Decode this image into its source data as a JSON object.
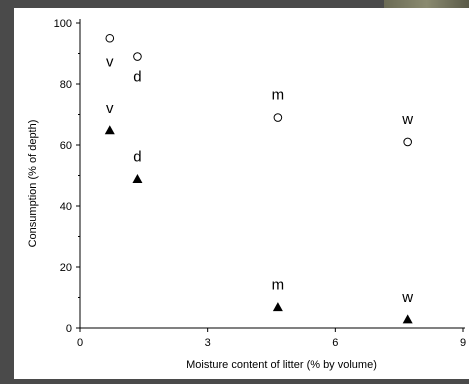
{
  "chart_data": {
    "type": "scatter",
    "title": "",
    "xlabel": "Moisture content of litter (% by volume)",
    "ylabel": "Consumption (% of depth)",
    "xlim": [
      0,
      9
    ],
    "ylim": [
      0,
      100
    ],
    "xticks": [
      0,
      3,
      6,
      9
    ],
    "yticks": [
      0,
      20,
      40,
      60,
      80,
      100
    ],
    "grid": false,
    "legend": "none",
    "series": [
      {
        "marker": "open-circle",
        "color": "#000000",
        "points": [
          {
            "x": 0.7,
            "y": 95,
            "label": "v"
          },
          {
            "x": 1.35,
            "y": 89,
            "label": "d"
          },
          {
            "x": 4.65,
            "y": 69,
            "label": "m"
          },
          {
            "x": 7.7,
            "y": 61,
            "label": "w"
          }
        ]
      },
      {
        "marker": "filled-triangle",
        "color": "#000000",
        "points": [
          {
            "x": 0.7,
            "y": 65,
            "label": "v"
          },
          {
            "x": 1.35,
            "y": 49,
            "label": "d"
          },
          {
            "x": 4.65,
            "y": 7,
            "label": "m"
          },
          {
            "x": 7.7,
            "y": 3,
            "label": "w"
          }
        ]
      }
    ]
  }
}
